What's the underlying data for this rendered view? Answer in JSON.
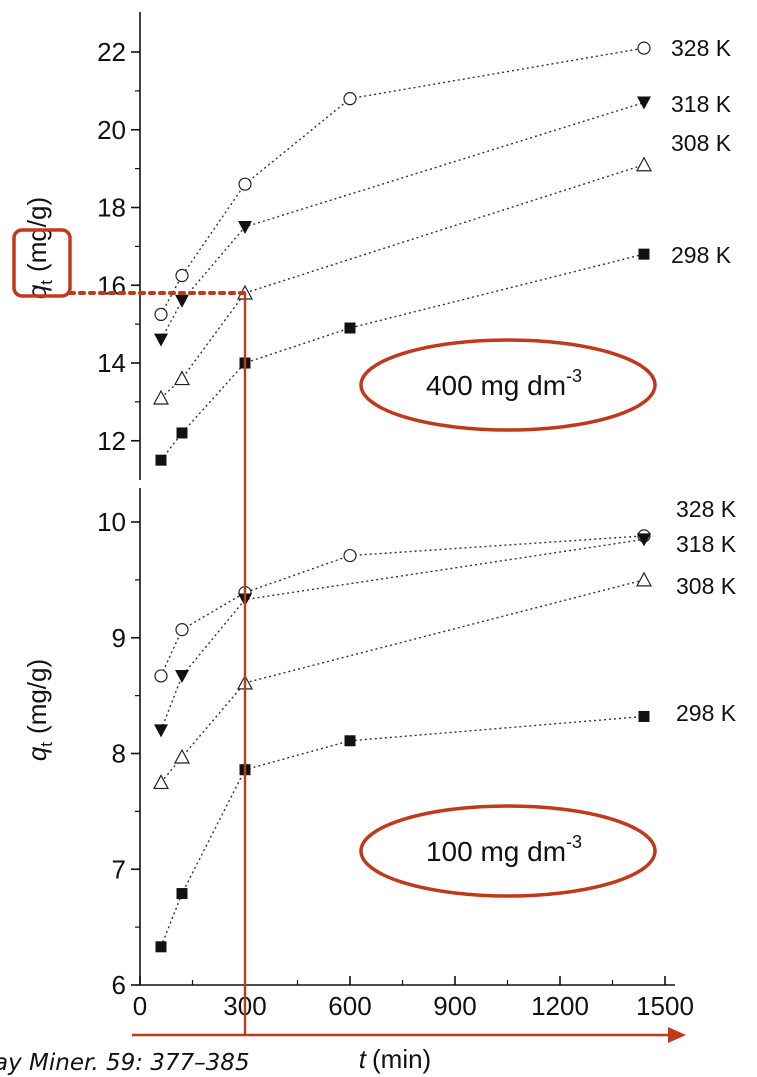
{
  "citation": "ay Miner. 59: 377–385",
  "colors": {
    "highlight": "#c0391b",
    "data": "#111111"
  },
  "chart_data": [
    {
      "type": "scatter",
      "panel": "top",
      "annotation": "400 mg dm",
      "annotation_sup": "-3",
      "ylabel_symbol": "q",
      "ylabel_sub": "t",
      "ylabel_unit": "(mg/g)",
      "ylim": [
        11.5,
        23
      ],
      "yticks": [
        12,
        14,
        16,
        18,
        20,
        22
      ],
      "ytick_labels": [
        "12",
        "14",
        "16",
        "18",
        "20",
        "22"
      ],
      "series": [
        {
          "name": "328 K",
          "marker": "circle-open",
          "x": [
            60,
            120,
            300,
            600,
            1440
          ],
          "y": [
            15.25,
            16.25,
            18.6,
            20.8,
            22.1
          ]
        },
        {
          "name": "318 K",
          "marker": "triangle-down-filled",
          "x": [
            60,
            120,
            300,
            1440
          ],
          "y": [
            14.6,
            15.6,
            17.5,
            20.7
          ]
        },
        {
          "name": "308 K",
          "marker": "triangle-up-open",
          "x": [
            60,
            120,
            300,
            1440
          ],
          "y": [
            13.1,
            13.6,
            15.8,
            19.1
          ]
        },
        {
          "name": "298 K",
          "marker": "square-filled",
          "x": [
            60,
            120,
            300,
            600,
            1440
          ],
          "y": [
            11.5,
            12.2,
            14.0,
            14.9,
            16.8
          ]
        }
      ]
    },
    {
      "type": "scatter",
      "panel": "bottom",
      "annotation": "100 mg dm",
      "annotation_sup": "-3",
      "ylabel_symbol": "q",
      "ylabel_sub": "t",
      "ylabel_unit": "(mg/g)",
      "xlabel_symbol": "t",
      "xlabel_unit": "(min)",
      "ylim": [
        6,
        10
      ],
      "xlim": [
        0,
        1500
      ],
      "yticks": [
        6,
        7,
        8,
        9,
        10
      ],
      "ytick_labels": [
        "6",
        "7",
        "8",
        "9",
        "10"
      ],
      "xticks": [
        0,
        300,
        600,
        900,
        1200,
        1500
      ],
      "xtick_labels": [
        "0",
        "300",
        "600",
        "900",
        "1200",
        "1500"
      ],
      "series": [
        {
          "name": "328 K",
          "marker": "circle-open",
          "x": [
            60,
            120,
            300,
            600,
            1440
          ],
          "y": [
            8.67,
            9.07,
            9.39,
            9.71,
            9.88
          ]
        },
        {
          "name": "318 K",
          "marker": "triangle-down-filled",
          "x": [
            60,
            120,
            300,
            1440
          ],
          "y": [
            8.2,
            8.67,
            9.33,
            9.85
          ]
        },
        {
          "name": "308 K",
          "marker": "triangle-up-open",
          "x": [
            60,
            120,
            300,
            1440
          ],
          "y": [
            7.75,
            7.97,
            8.61,
            9.5
          ]
        },
        {
          "name": "298 K",
          "marker": "square-filled",
          "x": [
            60,
            120,
            300,
            600,
            1440
          ],
          "y": [
            6.33,
            6.79,
            7.86,
            8.11,
            8.32
          ]
        }
      ]
    }
  ],
  "highlight": {
    "x": 300,
    "y": 15.8
  }
}
